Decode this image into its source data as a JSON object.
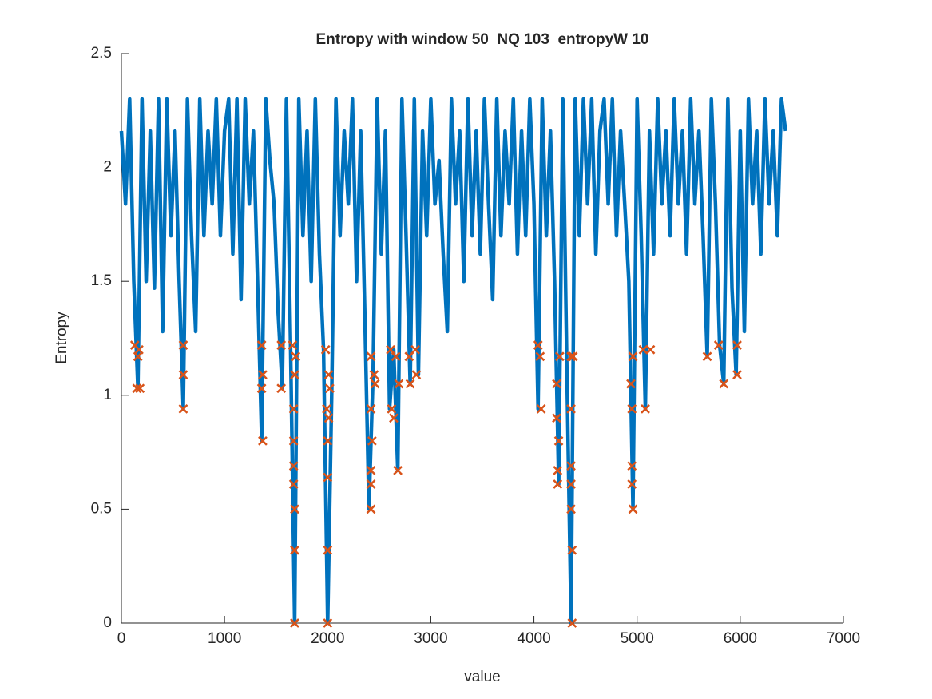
{
  "chart_data": {
    "type": "line",
    "title": "Entropy with window 50  NQ 103  entropyW 10",
    "xlabel": "value",
    "ylabel": "Entropy",
    "xlim": [
      0,
      7000
    ],
    "xticks": [
      0,
      1000,
      2000,
      3000,
      4000,
      5000,
      6000,
      7000
    ],
    "ylim": [
      0,
      2.5
    ],
    "yticks": [
      0,
      0.5,
      1,
      1.5,
      2,
      2.5
    ],
    "grid": false,
    "series": [
      {
        "color": "#0072bd",
        "marker": "none",
        "x": [
          0,
          40,
          80,
          120,
          160,
          200,
          240,
          280,
          320,
          360,
          400,
          440,
          480,
          520,
          560,
          600,
          640,
          680,
          720,
          760,
          800,
          840,
          880,
          920,
          960,
          1000,
          1040,
          1080,
          1120,
          1160,
          1200,
          1240,
          1280,
          1320,
          1360,
          1400,
          1440,
          1480,
          1520,
          1560,
          1600,
          1640,
          1680,
          1720,
          1760,
          1800,
          1840,
          1880,
          1920,
          1960,
          2000,
          2040,
          2080,
          2120,
          2160,
          2200,
          2240,
          2280,
          2320,
          2360,
          2400,
          2440,
          2480,
          2520,
          2560,
          2600,
          2640,
          2680,
          2720,
          2760,
          2800,
          2840,
          2880,
          2920,
          2960,
          3000,
          3040,
          3080,
          3120,
          3160,
          3200,
          3240,
          3280,
          3320,
          3360,
          3400,
          3440,
          3480,
          3520,
          3560,
          3600,
          3640,
          3680,
          3720,
          3760,
          3800,
          3840,
          3880,
          3920,
          3960,
          4000,
          4040,
          4080,
          4120,
          4160,
          4200,
          4240,
          4280,
          4320,
          4360,
          4400,
          4440,
          4480,
          4520,
          4560,
          4600,
          4640,
          4680,
          4720,
          4760,
          4800,
          4840,
          4880,
          4920,
          4960,
          5000,
          5040,
          5080,
          5120,
          5160,
          5200,
          5240,
          5280,
          5320,
          5360,
          5400,
          5440,
          5480,
          5520,
          5560,
          5600,
          5640,
          5680,
          5720,
          5760,
          5800,
          5840,
          5880,
          5920,
          5960,
          6000,
          6040,
          6080,
          6120,
          6160,
          6200,
          6240,
          6280,
          6320,
          6360,
          6400,
          6440
        ],
        "values": [
          2.16,
          1.84,
          2.3,
          1.5,
          1.03,
          2.3,
          1.5,
          2.16,
          1.47,
          2.3,
          1.28,
          2.3,
          1.7,
          2.16,
          1.5,
          0.94,
          2.3,
          1.7,
          1.28,
          2.3,
          1.7,
          2.16,
          1.84,
          2.3,
          1.7,
          2.16,
          2.3,
          1.62,
          2.3,
          1.42,
          2.3,
          1.84,
          2.16,
          1.5,
          0.8,
          2.3,
          2.03,
          1.84,
          1.36,
          1.03,
          2.3,
          1.22,
          0,
          2.3,
          1.7,
          2.16,
          1.5,
          2.3,
          1.62,
          1.2,
          0,
          1.03,
          2.3,
          1.7,
          2.16,
          1.84,
          2.3,
          1.5,
          2.16,
          1.36,
          0.5,
          1.09,
          2.3,
          1.62,
          2.16,
          0.94,
          1.2,
          0.67,
          2.3,
          1.7,
          1.05,
          2.3,
          1.09,
          2.16,
          1.7,
          2.3,
          1.84,
          2.03,
          1.62,
          1.28,
          2.3,
          1.84,
          2.16,
          1.5,
          2.3,
          1.7,
          2.16,
          1.62,
          2.3,
          1.84,
          1.42,
          2.3,
          1.7,
          2.16,
          1.84,
          2.3,
          1.62,
          2.16,
          1.7,
          2.3,
          1.84,
          0.94,
          2.3,
          1.7,
          2.16,
          1.5,
          0.61,
          2.3,
          1.09,
          0,
          2.3,
          1.7,
          2.3,
          1.84,
          2.3,
          1.62,
          2.16,
          2.3,
          1.84,
          2.3,
          1.7,
          2.16,
          1.84,
          1.5,
          0.5,
          2.3,
          1.7,
          0.94,
          2.16,
          1.62,
          2.3,
          1.84,
          2.16,
          1.7,
          2.3,
          1.84,
          2.16,
          1.62,
          2.3,
          1.84,
          2.16,
          1.7,
          1.17,
          2.3,
          1.84,
          1.22,
          1.05,
          2.3,
          1.47,
          1.09,
          2.16,
          1.28,
          2.3,
          1.84,
          2.16,
          1.62,
          2.3,
          1.84,
          2.16,
          1.7,
          2.3,
          2.16
        ]
      },
      {
        "color": "#d95319",
        "marker": "x",
        "x": [
          130,
          150,
          160,
          170,
          180,
          600,
          600,
          600,
          1360,
          1370,
          1360,
          1370,
          1550,
          1550,
          1660,
          1670,
          1670,
          1670,
          1670,
          1680,
          1680,
          1680,
          1690,
          1680,
          1980,
          1990,
          2000,
          2000,
          2000,
          2000,
          2010,
          2010,
          2020,
          2420,
          2420,
          2420,
          2420,
          2420,
          2430,
          2450,
          2460,
          2610,
          2620,
          2640,
          2660,
          2680,
          2690,
          2790,
          2800,
          2850,
          2860,
          4040,
          4060,
          4070,
          4220,
          4220,
          4230,
          4230,
          4240,
          4250,
          4360,
          4360,
          4360,
          4360,
          4360,
          4370,
          4370,
          4380,
          4940,
          4950,
          4950,
          4950,
          4960,
          4960,
          5060,
          5080,
          5130,
          5680,
          5790,
          5840,
          5970,
          5970
        ],
        "values": [
          1.22,
          1.03,
          1.17,
          1.2,
          1.03,
          1.22,
          1.09,
          0.94,
          1.22,
          1.09,
          1.03,
          0.8,
          1.22,
          1.03,
          1.22,
          0.94,
          0.8,
          0.69,
          0.61,
          0.5,
          0.32,
          0,
          1.17,
          1.09,
          1.2,
          0.94,
          0.8,
          0.64,
          0.32,
          0,
          1.09,
          0.9,
          1.03,
          1.17,
          0.94,
          0.67,
          0.61,
          0.5,
          0.8,
          1.09,
          1.05,
          1.2,
          0.94,
          0.9,
          1.17,
          0.67,
          1.05,
          1.17,
          1.05,
          1.2,
          1.09,
          1.22,
          1.17,
          0.94,
          1.05,
          0.9,
          0.67,
          0.61,
          0.8,
          1.17,
          1.17,
          0.94,
          0.69,
          0.61,
          0.5,
          0.32,
          0,
          1.17,
          1.05,
          0.94,
          0.69,
          0.61,
          0.5,
          1.17,
          1.2,
          0.94,
          1.2,
          1.17,
          1.22,
          1.05,
          1.22,
          1.09
        ]
      }
    ]
  }
}
